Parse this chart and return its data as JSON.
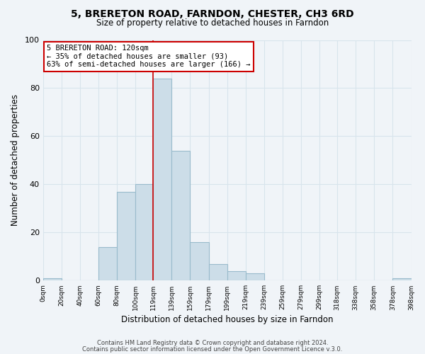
{
  "title": "5, BRERETON ROAD, FARNDON, CHESTER, CH3 6RD",
  "subtitle": "Size of property relative to detached houses in Farndon",
  "xlabel": "Distribution of detached houses by size in Farndon",
  "ylabel": "Number of detached properties",
  "bar_color": "#ccdde8",
  "bar_edge_color": "#99bbcc",
  "background_color": "#f0f4f8",
  "grid_color": "#d8e4ec",
  "bin_edges": [
    0,
    20,
    40,
    60,
    80,
    100,
    119,
    139,
    159,
    179,
    199,
    219,
    239,
    259,
    279,
    299,
    318,
    338,
    358,
    378,
    398
  ],
  "bin_labels": [
    "0sqm",
    "20sqm",
    "40sqm",
    "60sqm",
    "80sqm",
    "100sqm",
    "119sqm",
    "139sqm",
    "159sqm",
    "179sqm",
    "199sqm",
    "219sqm",
    "239sqm",
    "259sqm",
    "279sqm",
    "299sqm",
    "318sqm",
    "338sqm",
    "358sqm",
    "378sqm",
    "398sqm"
  ],
  "counts": [
    1,
    0,
    0,
    14,
    37,
    40,
    84,
    54,
    16,
    7,
    4,
    3,
    0,
    0,
    0,
    0,
    0,
    0,
    0,
    1
  ],
  "vline_x": 119,
  "annotation_title": "5 BRERETON ROAD: 120sqm",
  "annotation_line1": "← 35% of detached houses are smaller (93)",
  "annotation_line2": "63% of semi-detached houses are larger (166) →",
  "annotation_box_color": "#ffffff",
  "annotation_box_edge_color": "#cc0000",
  "vline_color": "#cc0000",
  "ylim": [
    0,
    100
  ],
  "yticks": [
    0,
    20,
    40,
    60,
    80,
    100
  ],
  "footer1": "Contains HM Land Registry data © Crown copyright and database right 2024.",
  "footer2": "Contains public sector information licensed under the Open Government Licence v.3.0."
}
